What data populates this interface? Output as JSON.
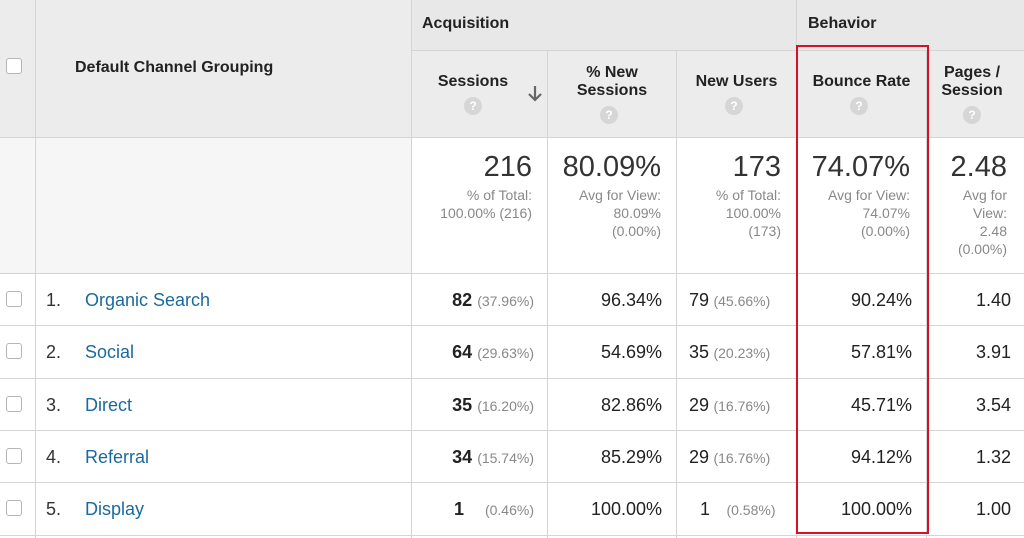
{
  "header": {
    "dimension_label": "Default Channel Grouping",
    "group_acquisition": "Acquisition",
    "group_behavior": "Behavior",
    "help_glyph": "?",
    "sort_icon": "arrow-down-icon",
    "columns": {
      "sessions": "Sessions",
      "pct_new_sessions_line1": "% New",
      "pct_new_sessions_line2": "Sessions",
      "new_users": "New Users",
      "bounce_rate": "Bounce Rate",
      "pages_session_line1": "Pages /",
      "pages_session_line2": "Session"
    }
  },
  "totals": {
    "sessions": {
      "value": "216",
      "line1": "% of Total:",
      "line2": "100.00% (216)"
    },
    "pct_new_sessions": {
      "value": "80.09%",
      "line1": "Avg for View:",
      "line2": "80.09%",
      "line3": "(0.00%)"
    },
    "new_users": {
      "value": "173",
      "line1": "% of Total:",
      "line2": "100.00%",
      "line3": "(173)"
    },
    "bounce_rate": {
      "value": "74.07%",
      "line1": "Avg for View:",
      "line2": "74.07%",
      "line3": "(0.00%)"
    },
    "pages_session": {
      "value": "2.48",
      "line1": "Avg for",
      "line2": "View:",
      "line3": "2.48",
      "line4": "(0.00%)"
    }
  },
  "rows": [
    {
      "num": "1.",
      "channel": "Organic Search",
      "sessions": "82",
      "sessions_pct": "(37.96%)",
      "pct_new_sessions": "96.34%",
      "new_users": "79",
      "new_users_pct": "(45.66%)",
      "bounce_rate": "90.24%",
      "pages_session": "1.40"
    },
    {
      "num": "2.",
      "channel": "Social",
      "sessions": "64",
      "sessions_pct": "(29.63%)",
      "pct_new_sessions": "54.69%",
      "new_users": "35",
      "new_users_pct": "(20.23%)",
      "bounce_rate": "57.81%",
      "pages_session": "3.91"
    },
    {
      "num": "3.",
      "channel": "Direct",
      "sessions": "35",
      "sessions_pct": "(16.20%)",
      "pct_new_sessions": "82.86%",
      "new_users": "29",
      "new_users_pct": "(16.76%)",
      "bounce_rate": "45.71%",
      "pages_session": "3.54"
    },
    {
      "num": "4.",
      "channel": "Referral",
      "sessions": "34",
      "sessions_pct": "(15.74%)",
      "pct_new_sessions": "85.29%",
      "new_users": "29",
      "new_users_pct": "(16.76%)",
      "bounce_rate": "94.12%",
      "pages_session": "1.32"
    },
    {
      "num": "5.",
      "channel": "Display",
      "sessions": "1",
      "sessions_pct": "(0.46%)",
      "pct_new_sessions": "100.00%",
      "new_users": "1",
      "new_users_pct": "(0.58%)",
      "bounce_rate": "100.00%",
      "pages_session": "1.00"
    }
  ],
  "colors": {
    "link": "#1a6a9e",
    "highlight": "#d3122a",
    "header_bg": "#ececec"
  }
}
